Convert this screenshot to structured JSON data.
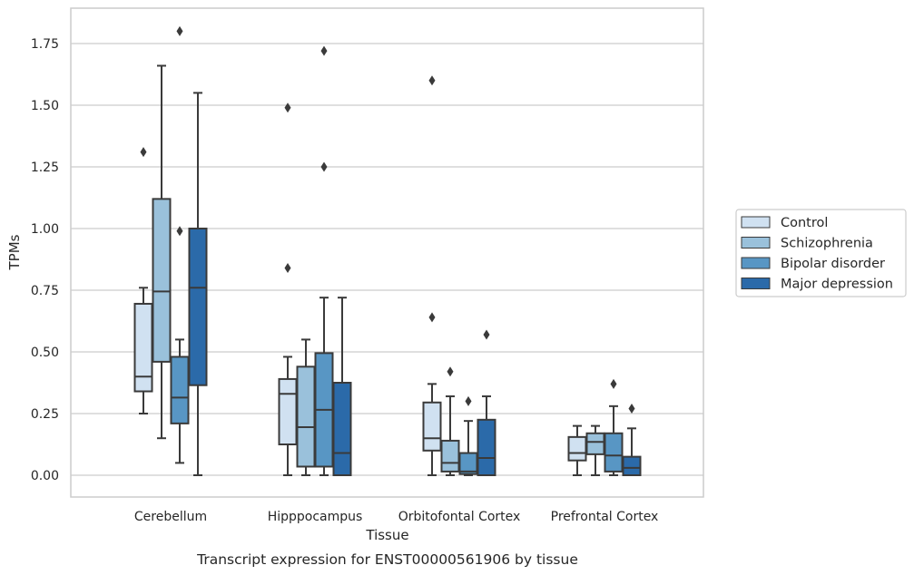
{
  "chart_data": {
    "type": "box",
    "title": "",
    "caption": "Transcript expression for ENST00000561906 by tissue",
    "xlabel": "Tissue",
    "ylabel": "TPMs",
    "ylim": [
      -0.09,
      1.89
    ],
    "yticks": [
      "0.00",
      "0.25",
      "0.50",
      "0.75",
      "1.00",
      "1.25",
      "1.50",
      "1.75"
    ],
    "ytick_values": [
      0,
      0.25,
      0.5,
      0.75,
      1.0,
      1.25,
      1.5,
      1.75
    ],
    "grid": true,
    "legend_position": "right",
    "categories": [
      "Cerebellum",
      "Hipppocampus",
      "Orbitofontal Cortex",
      "Prefrontal Cortex"
    ],
    "series": [
      {
        "name": "Control",
        "color": "#d0e1f1",
        "boxes": [
          {
            "q1": 0.34,
            "median": 0.4,
            "q3": 0.695,
            "whisker_low": 0.25,
            "whisker_high": 0.76,
            "outliers": [
              1.31
            ]
          },
          {
            "q1": 0.125,
            "median": 0.33,
            "q3": 0.39,
            "whisker_low": 0.0,
            "whisker_high": 0.48,
            "outliers": [
              0.84,
              1.49
            ]
          },
          {
            "q1": 0.1,
            "median": 0.15,
            "q3": 0.295,
            "whisker_low": 0.0,
            "whisker_high": 0.37,
            "outliers": [
              0.64,
              1.6
            ]
          },
          {
            "q1": 0.06,
            "median": 0.09,
            "q3": 0.155,
            "whisker_low": 0.0,
            "whisker_high": 0.2,
            "outliers": []
          }
        ]
      },
      {
        "name": "Schizophrenia",
        "color": "#9ac1db",
        "boxes": [
          {
            "q1": 0.46,
            "median": 0.745,
            "q3": 1.12,
            "whisker_low": 0.15,
            "whisker_high": 1.66,
            "outliers": []
          },
          {
            "q1": 0.035,
            "median": 0.195,
            "q3": 0.44,
            "whisker_low": 0.0,
            "whisker_high": 0.55,
            "outliers": []
          },
          {
            "q1": 0.015,
            "median": 0.05,
            "q3": 0.14,
            "whisker_low": 0.0,
            "whisker_high": 0.32,
            "outliers": [
              0.42
            ]
          },
          {
            "q1": 0.085,
            "median": 0.135,
            "q3": 0.17,
            "whisker_low": 0.0,
            "whisker_high": 0.2,
            "outliers": []
          }
        ]
      },
      {
        "name": "Bipolar disorder",
        "color": "#5896c4",
        "boxes": [
          {
            "q1": 0.21,
            "median": 0.315,
            "q3": 0.48,
            "whisker_low": 0.05,
            "whisker_high": 0.55,
            "outliers": [
              0.99,
              1.8
            ]
          },
          {
            "q1": 0.035,
            "median": 0.265,
            "q3": 0.495,
            "whisker_low": 0.0,
            "whisker_high": 0.72,
            "outliers": [
              1.25,
              1.72
            ]
          },
          {
            "q1": 0.005,
            "median": 0.015,
            "q3": 0.09,
            "whisker_low": 0.0,
            "whisker_high": 0.22,
            "outliers": [
              0.3
            ]
          },
          {
            "q1": 0.015,
            "median": 0.08,
            "q3": 0.17,
            "whisker_low": 0.0,
            "whisker_high": 0.28,
            "outliers": [
              0.37
            ]
          }
        ]
      },
      {
        "name": "Major depression",
        "color": "#2b6aa9",
        "boxes": [
          {
            "q1": 0.365,
            "median": 0.76,
            "q3": 1.0,
            "whisker_low": 0.0,
            "whisker_high": 1.55,
            "outliers": []
          },
          {
            "q1": 0.0,
            "median": 0.09,
            "q3": 0.375,
            "whisker_low": 0.0,
            "whisker_high": 0.72,
            "outliers": []
          },
          {
            "q1": 0.0,
            "median": 0.07,
            "q3": 0.225,
            "whisker_low": 0.0,
            "whisker_high": 0.32,
            "outliers": [
              0.57
            ]
          },
          {
            "q1": 0.0,
            "median": 0.03,
            "q3": 0.075,
            "whisker_low": 0.0,
            "whisker_high": 0.19,
            "outliers": [
              0.27
            ]
          }
        ]
      }
    ]
  }
}
